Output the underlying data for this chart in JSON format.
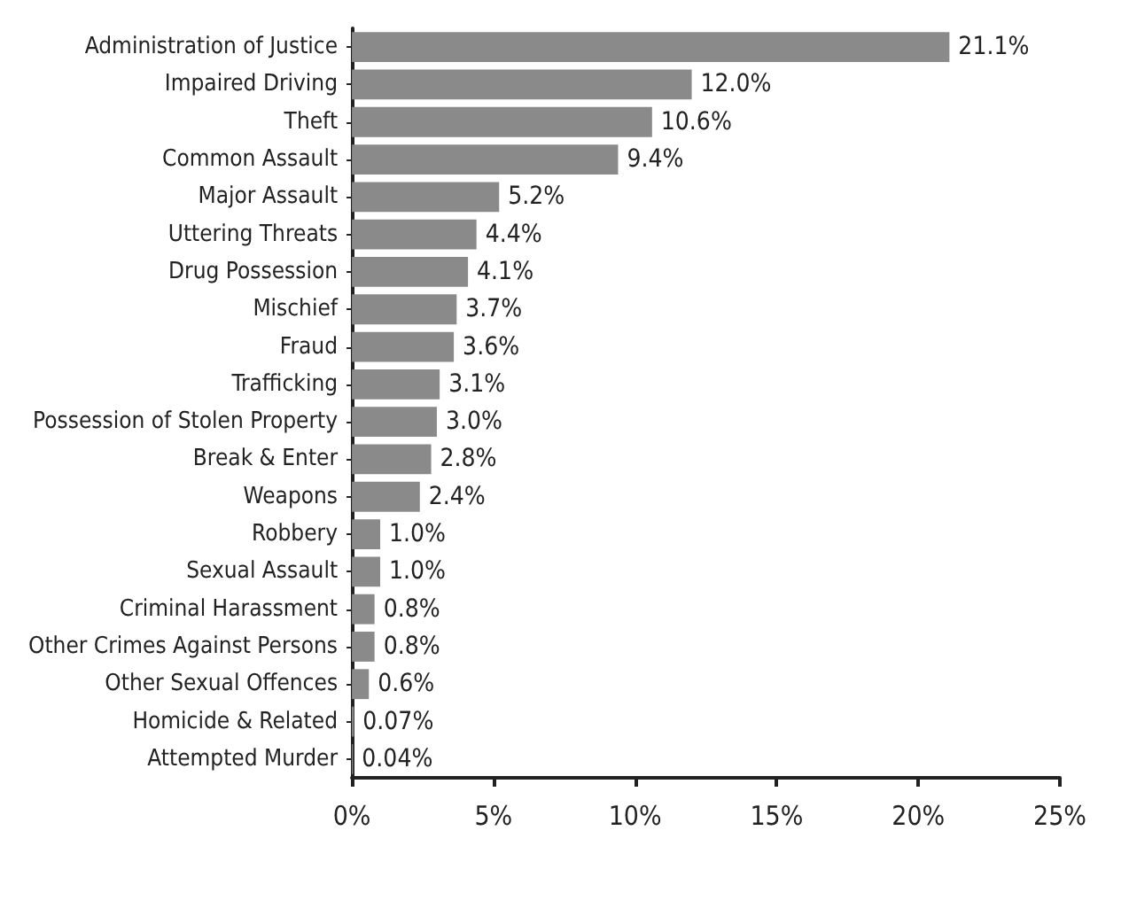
{
  "chart_data": {
    "type": "bar",
    "orientation": "horizontal",
    "categories": [
      "Administration of Justice",
      "Impaired Driving",
      "Theft",
      "Common Assault",
      "Major Assault",
      "Uttering Threats",
      "Drug Possession",
      "Mischief",
      "Fraud",
      "Trafficking",
      "Possession of Stolen Property",
      "Break & Enter",
      "Weapons",
      "Robbery",
      "Sexual Assault",
      "Criminal Harassment",
      "Other Crimes Against Persons",
      "Other Sexual Offences",
      "Homicide & Related",
      "Attempted Murder"
    ],
    "values": [
      21.1,
      12.0,
      10.6,
      9.4,
      5.2,
      4.4,
      4.1,
      3.7,
      3.6,
      3.1,
      3.0,
      2.8,
      2.4,
      1.0,
      1.0,
      0.8,
      0.8,
      0.6,
      0.07,
      0.04
    ],
    "value_labels": [
      "21.1%",
      "12.0%",
      "10.6%",
      "9.4%",
      "5.2%",
      "4.4%",
      "4.1%",
      "3.7%",
      "3.6%",
      "3.1%",
      "3.0%",
      "2.8%",
      "2.4%",
      "1.0%",
      "1.0%",
      "0.8%",
      "0.8%",
      "0.6%",
      "0.07%",
      "0.04%"
    ],
    "color": "#8a8a8a",
    "xlim": [
      0,
      25
    ],
    "xticks": [
      {
        "value": 0,
        "label": "0%"
      },
      {
        "value": 5,
        "label": "5%"
      },
      {
        "value": 10,
        "label": "10%"
      },
      {
        "value": 15,
        "label": "15%"
      },
      {
        "value": 20,
        "label": "20%"
      },
      {
        "value": 25,
        "label": "25%"
      }
    ],
    "xlabel": null
  }
}
